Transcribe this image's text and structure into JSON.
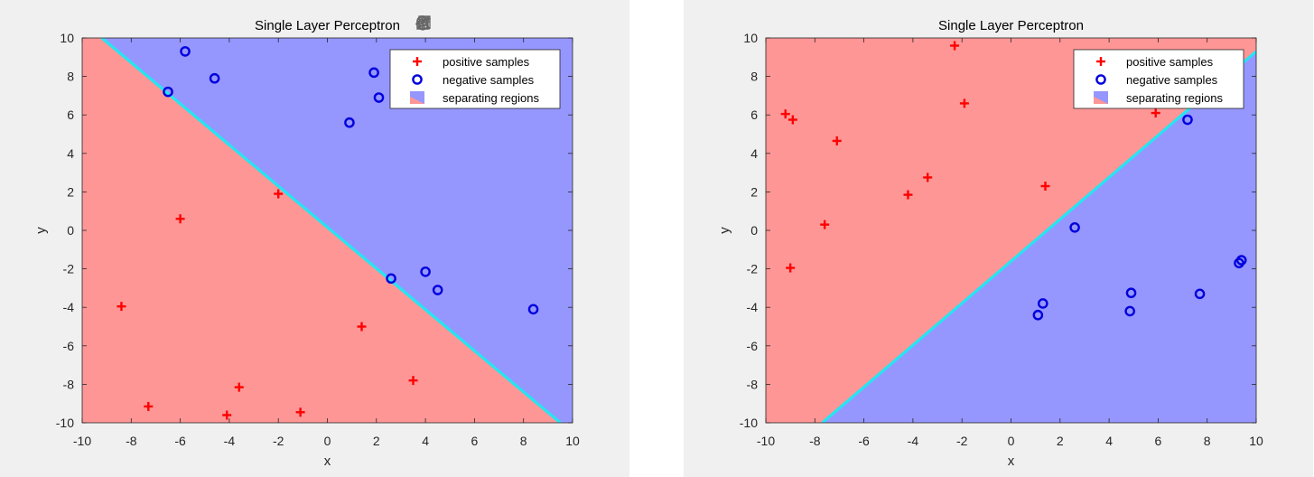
{
  "toolbar": {
    "items": [
      {
        "name": "export-icon"
      },
      {
        "name": "brush-icon"
      },
      {
        "name": "data-tips-icon"
      },
      {
        "name": "pan-hand-icon"
      },
      {
        "name": "zoom-in-icon"
      },
      {
        "name": "zoom-out-icon"
      },
      {
        "name": "home-icon"
      }
    ]
  },
  "colors": {
    "positive_region": "#ff9696",
    "negative_region": "#9696ff",
    "boundary": "#25e5f2",
    "positive_marker": "#ff0000",
    "negative_marker": "#0000dd",
    "figure_bg": "#f0f0f0"
  },
  "chart_data": [
    {
      "type": "scatter",
      "title": "Single Layer Perceptron",
      "xlabel": "x",
      "ylabel": "y",
      "xlim": [
        -10,
        10
      ],
      "ylim": [
        -10,
        10
      ],
      "xticks": [
        -10,
        -8,
        -6,
        -4,
        -2,
        0,
        2,
        4,
        6,
        8,
        10
      ],
      "yticks": [
        -10,
        -8,
        -6,
        -4,
        -2,
        0,
        2,
        4,
        6,
        8,
        10
      ],
      "grid": false,
      "legend": {
        "position": "top-right",
        "entries": [
          "positive samples",
          "negative samples",
          "separating regions"
        ]
      },
      "boundary": {
        "points": [
          [
            -9.2,
            10
          ],
          [
            9.5,
            -10
          ]
        ],
        "positive_side": "below"
      },
      "series": [
        {
          "name": "positive samples",
          "marker": "plus",
          "points": [
            [
              -2,
              1.9
            ],
            [
              -6,
              0.6
            ],
            [
              -8.4,
              -3.95
            ],
            [
              -7.3,
              -9.15
            ],
            [
              -4.1,
              -9.6
            ],
            [
              -3.6,
              -8.15
            ],
            [
              -1.1,
              -9.45
            ],
            [
              1.4,
              -5
            ],
            [
              3.5,
              -7.8
            ]
          ]
        },
        {
          "name": "negative samples",
          "marker": "circle",
          "points": [
            [
              -5.8,
              9.3
            ],
            [
              -6.5,
              7.2
            ],
            [
              -4.6,
              7.9
            ],
            [
              1.9,
              8.2
            ],
            [
              2.1,
              6.9
            ],
            [
              0.9,
              5.6
            ],
            [
              2.6,
              -2.5
            ],
            [
              4,
              -2.15
            ],
            [
              4.5,
              -3.1
            ],
            [
              8.4,
              -4.1
            ]
          ]
        }
      ]
    },
    {
      "type": "scatter",
      "title": "Single Layer Perceptron",
      "xlabel": "x",
      "ylabel": "y",
      "xlim": [
        -10,
        10
      ],
      "ylim": [
        -10,
        10
      ],
      "xticks": [
        -10,
        -8,
        -6,
        -4,
        -2,
        0,
        2,
        4,
        6,
        8,
        10
      ],
      "yticks": [
        -10,
        -8,
        -6,
        -4,
        -2,
        0,
        2,
        4,
        6,
        8,
        10
      ],
      "grid": false,
      "legend": {
        "position": "top-right",
        "entries": [
          "positive samples",
          "negative samples",
          "separating regions"
        ]
      },
      "boundary": {
        "points": [
          [
            -7.7,
            -10
          ],
          [
            10,
            9.3
          ]
        ],
        "positive_side": "above"
      },
      "series": [
        {
          "name": "positive samples",
          "marker": "plus",
          "points": [
            [
              -9.2,
              6.05
            ],
            [
              -8.9,
              5.75
            ],
            [
              -7.1,
              4.65
            ],
            [
              -2.3,
              9.6
            ],
            [
              -1.9,
              6.6
            ],
            [
              -3.4,
              2.75
            ],
            [
              -4.2,
              1.85
            ],
            [
              -7.6,
              0.3
            ],
            [
              -9,
              -1.95
            ],
            [
              1.4,
              2.3
            ],
            [
              5.9,
              6.1
            ]
          ]
        },
        {
          "name": "negative samples",
          "marker": "circle",
          "points": [
            [
              7.2,
              5.75
            ],
            [
              2.6,
              0.15
            ],
            [
              1.3,
              -3.8
            ],
            [
              1.1,
              -4.4
            ],
            [
              4.9,
              -3.25
            ],
            [
              4.85,
              -4.2
            ],
            [
              7.7,
              -3.3
            ],
            [
              9.3,
              -1.7
            ],
            [
              9.4,
              -1.55
            ]
          ]
        }
      ]
    }
  ]
}
